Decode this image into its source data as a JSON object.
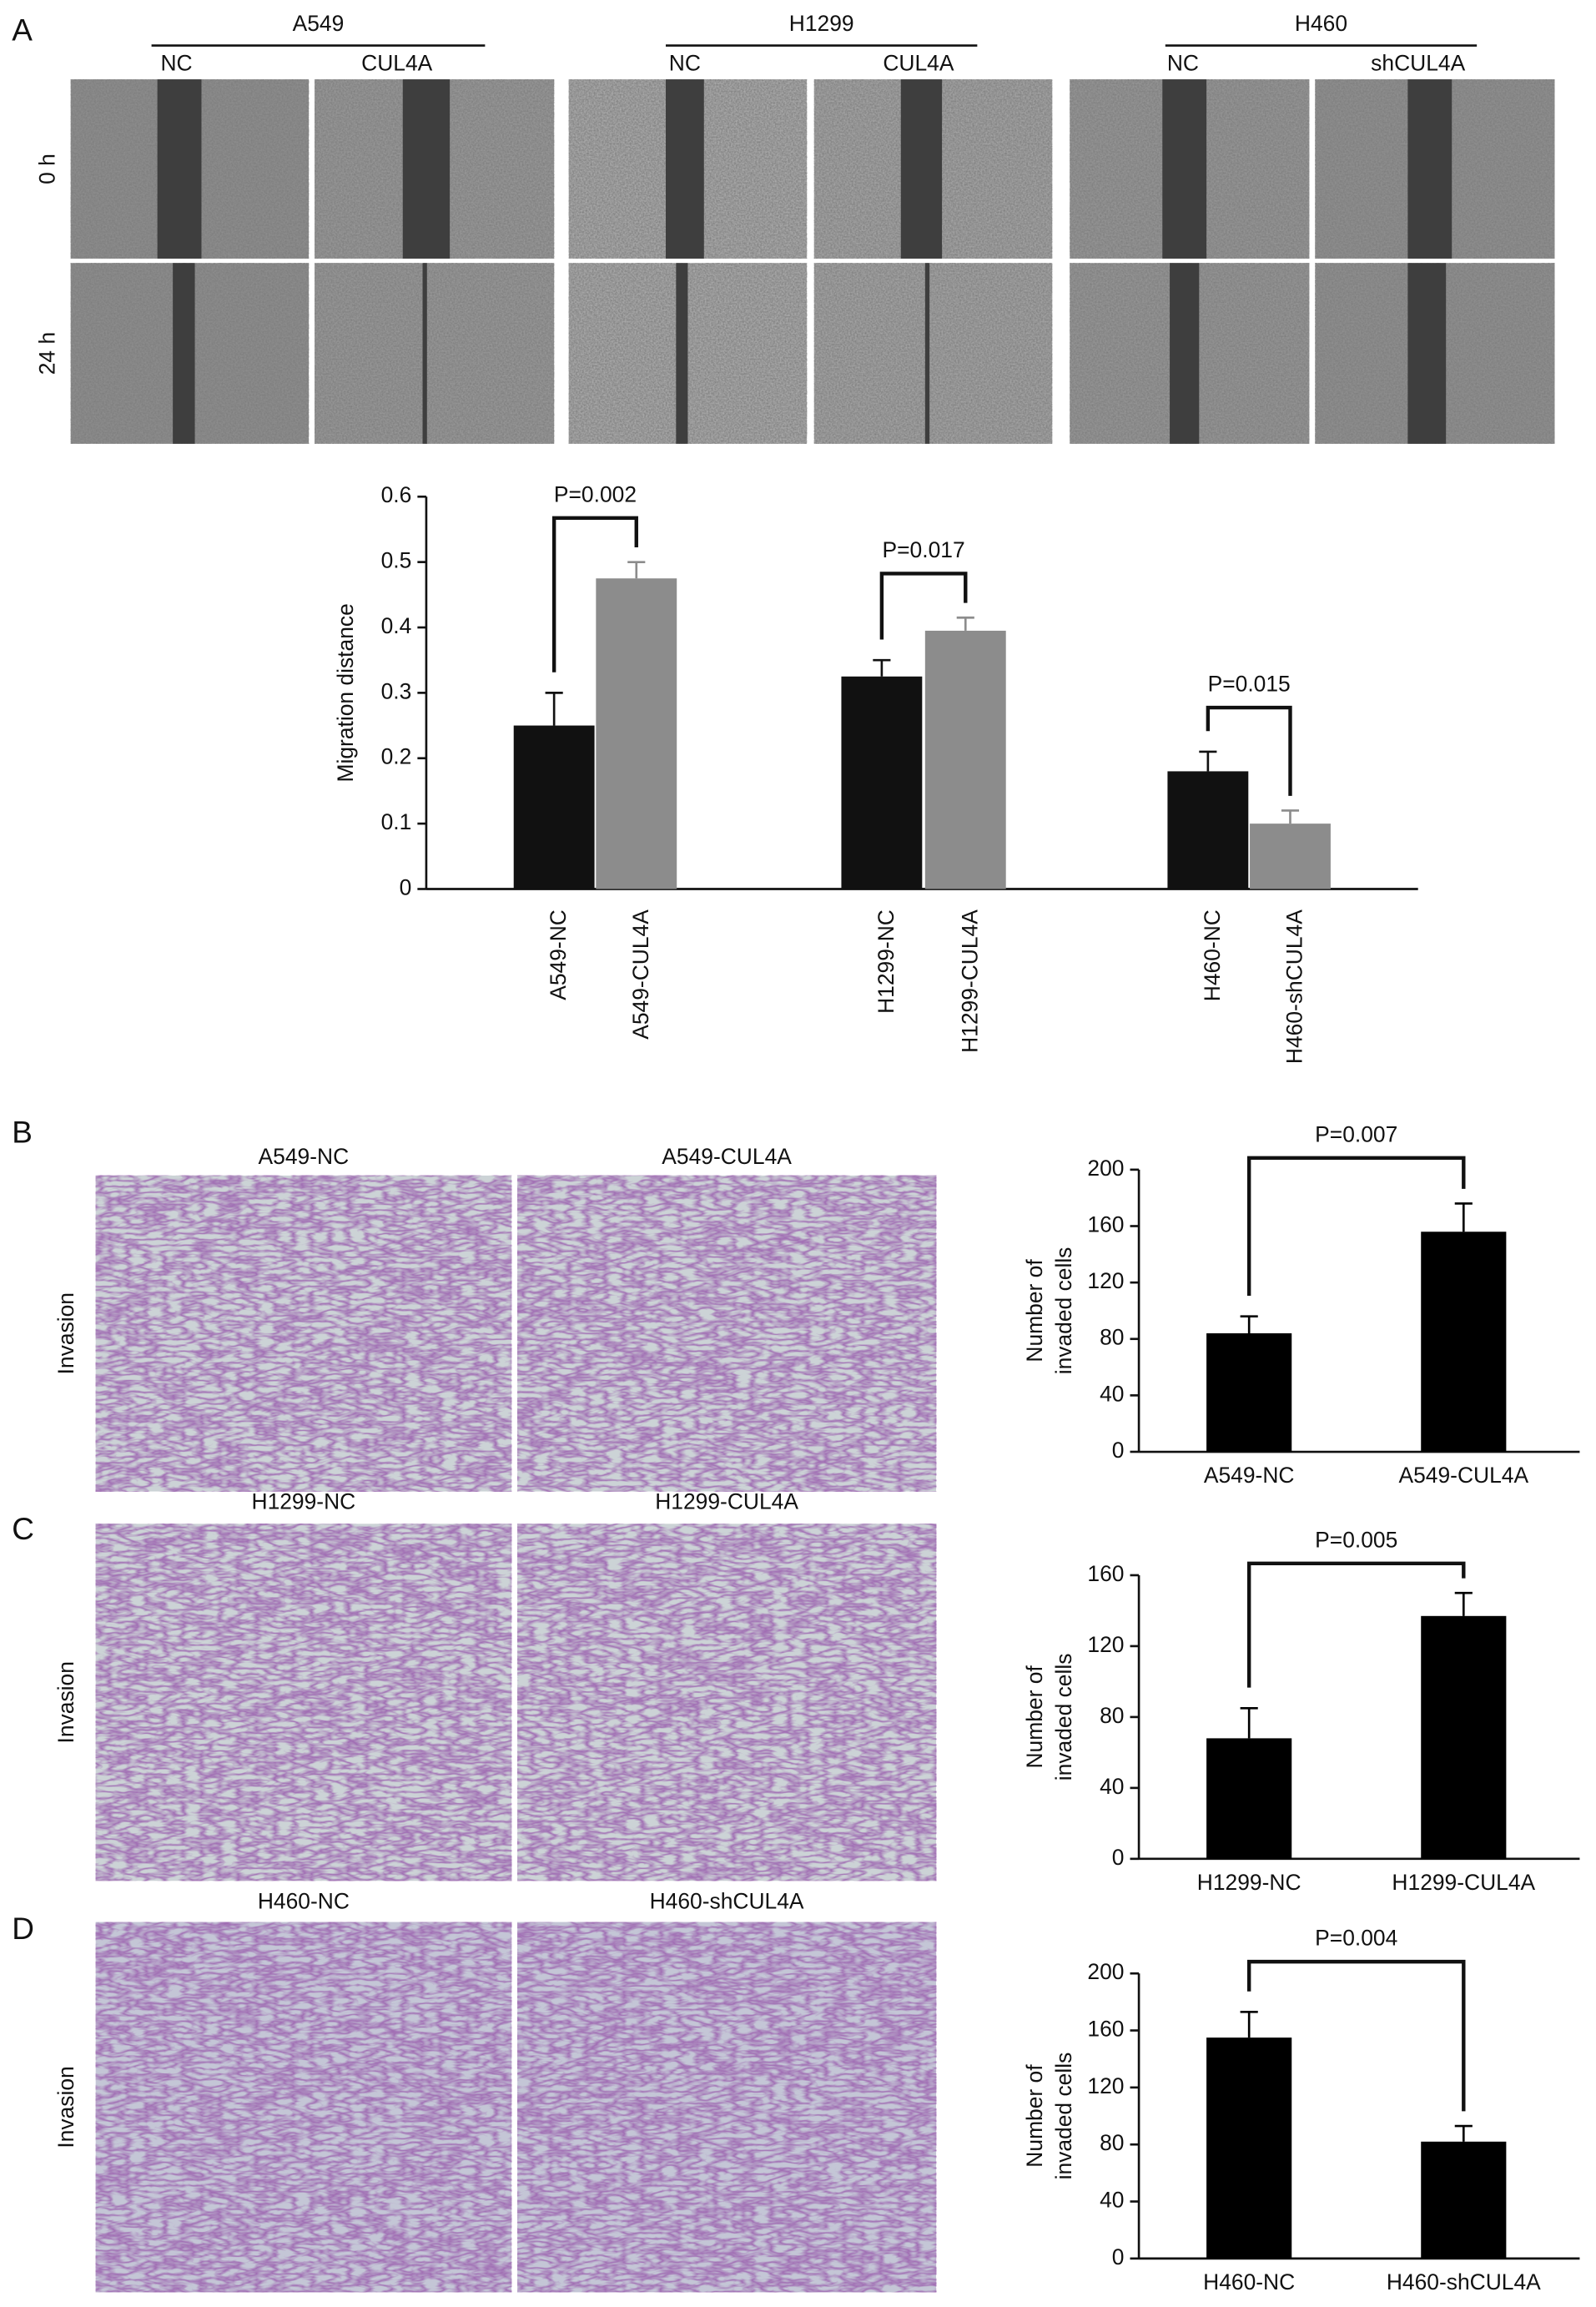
{
  "panel_labels": [
    "A",
    "B",
    "C",
    "D"
  ],
  "scratch": {
    "row_labels": [
      "0 h",
      "24 h"
    ],
    "groups": [
      {
        "name": "A549",
        "conditions": [
          "NC",
          "CUL4A"
        ]
      },
      {
        "name": "H1299",
        "conditions": [
          "NC",
          "CUL4A"
        ]
      },
      {
        "name": "H460",
        "conditions": [
          "NC",
          "shCUL4A"
        ]
      }
    ]
  },
  "invasion": {
    "row_label": "Invasion",
    "panels": [
      [
        "A549-NC",
        "A549-CUL4A"
      ],
      [
        "H1299-NC",
        "H1299-CUL4A"
      ],
      [
        "H460-NC",
        "H460-shCUL4A"
      ]
    ]
  },
  "chart_data": [
    {
      "type": "bar",
      "ylabel": "Migration distance",
      "categories": [
        "A549-NC",
        "A549-CUL4A",
        "H1299-NC",
        "H1299-CUL4A",
        "H460-NC",
        "H460-shCUL4A"
      ],
      "values": [
        0.25,
        0.475,
        0.325,
        0.395,
        0.18,
        0.1
      ],
      "errors": [
        0.05,
        0.025,
        0.025,
        0.02,
        0.03,
        0.02
      ],
      "colors": [
        "#111111",
        "#8c8c8c",
        "#111111",
        "#8c8c8c",
        "#111111",
        "#8c8c8c"
      ],
      "ylim": [
        0,
        0.6
      ],
      "yticks": [
        0,
        0.1,
        0.2,
        0.3,
        0.4,
        0.5,
        0.6
      ],
      "annotations": [
        "P=0.002",
        "P=0.017",
        "P=0.015"
      ]
    },
    {
      "type": "bar",
      "ylabel": [
        "Number of",
        "invaded cells"
      ],
      "categories": [
        "A549-NC",
        "A549-CUL4A"
      ],
      "values": [
        84,
        156
      ],
      "errors": [
        12,
        20
      ],
      "color": "#000000",
      "ylim": [
        0,
        200
      ],
      "yticks": [
        0,
        40,
        80,
        120,
        160,
        200
      ],
      "annotations": [
        "P=0.007"
      ]
    },
    {
      "type": "bar",
      "ylabel": [
        "Number of",
        "invaded cells"
      ],
      "categories": [
        "H1299-NC",
        "H1299-CUL4A"
      ],
      "values": [
        68,
        137
      ],
      "errors": [
        17,
        13
      ],
      "color": "#000000",
      "ylim": [
        0,
        160
      ],
      "yticks": [
        0,
        40,
        80,
        120,
        160
      ],
      "annotations": [
        "P=0.005"
      ]
    },
    {
      "type": "bar",
      "ylabel": [
        "Number of",
        "invaded cells"
      ],
      "categories": [
        "H460-NC",
        "H460-shCUL4A"
      ],
      "values": [
        155,
        82
      ],
      "errors": [
        18,
        11
      ],
      "color": "#000000",
      "ylim": [
        0,
        200
      ],
      "yticks": [
        0,
        40,
        80,
        120,
        160,
        200
      ],
      "annotations": [
        "P=0.004"
      ]
    }
  ]
}
